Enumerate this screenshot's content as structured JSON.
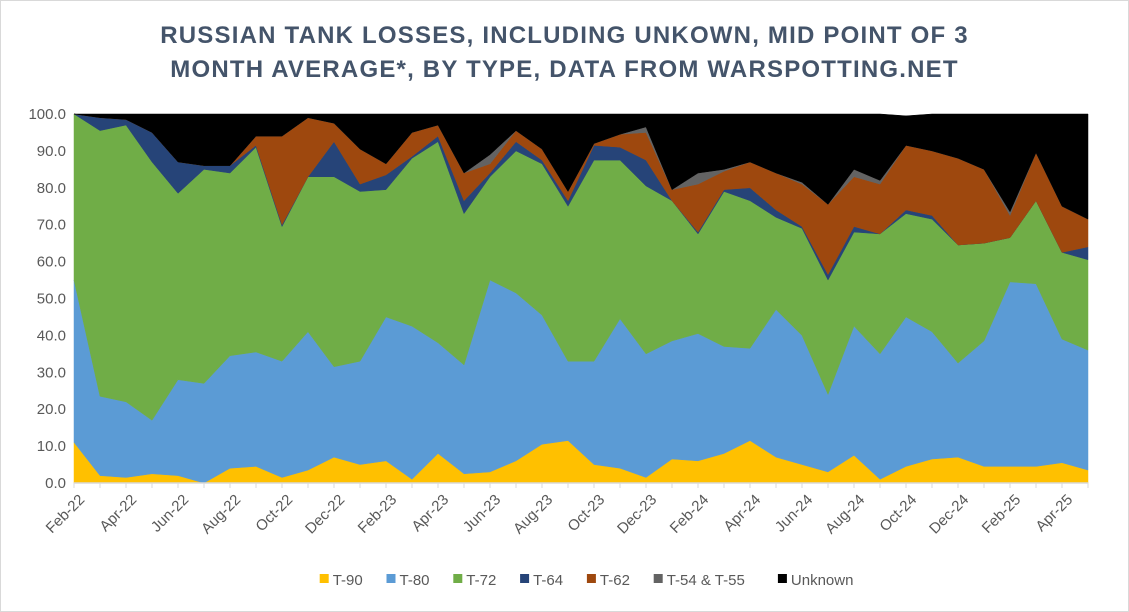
{
  "chart_data": {
    "type": "area",
    "stacked": true,
    "title_lines": [
      "RUSSIAN TANK LOSSES, INCLUDING UNKOWN, MID POINT OF 3",
      "MONTH AVERAGE*, BY TYPE, DATA FROM WARSPOTTING.NET"
    ],
    "xlabel": "",
    "ylabel": "",
    "ylim": [
      0,
      100
    ],
    "yticks": [
      "0.0",
      "10.0",
      "20.0",
      "30.0",
      "40.0",
      "50.0",
      "60.0",
      "70.0",
      "80.0",
      "90.0",
      "100.0"
    ],
    "x": [
      "Feb-22",
      "Mar-22",
      "Apr-22",
      "May-22",
      "Jun-22",
      "Jul-22",
      "Aug-22",
      "Sep-22",
      "Oct-22",
      "Nov-22",
      "Dec-22",
      "Jan-23",
      "Feb-23",
      "Mar-23",
      "Apr-23",
      "May-23",
      "Jun-23",
      "Jul-23",
      "Aug-23",
      "Sep-23",
      "Oct-23",
      "Nov-23",
      "Dec-23",
      "Jan-24",
      "Feb-24",
      "Mar-24",
      "Apr-24",
      "May-24",
      "Jun-24",
      "Jul-24",
      "Aug-24",
      "Sep-24",
      "Oct-24",
      "Nov-24",
      "Dec-24",
      "Jan-25",
      "Feb-25",
      "Mar-25",
      "Apr-25",
      "May-25"
    ],
    "xtick_labels": [
      "Feb-22",
      "Apr-22",
      "Jun-22",
      "Aug-22",
      "Oct-22",
      "Dec-22",
      "Feb-23",
      "Apr-23",
      "Jun-23",
      "Aug-23",
      "Oct-23",
      "Dec-23",
      "Feb-24",
      "Apr-24",
      "Jun-24",
      "Aug-24",
      "Oct-24",
      "Dec-24",
      "Feb-25",
      "Apr-25"
    ],
    "legend_position": "bottom",
    "grid": false,
    "series": [
      {
        "name": "T-90",
        "color": "#ffc000",
        "values": [
          11,
          2,
          1.5,
          2.5,
          2,
          0,
          4,
          4.5,
          1.5,
          3.5,
          7,
          5,
          6,
          1,
          8,
          2.5,
          3,
          6,
          10.5,
          11.5,
          5,
          4,
          1.5,
          6.5,
          6,
          8,
          11.5,
          7,
          5,
          3,
          7.5,
          1,
          4.5,
          6.5,
          7,
          4.5,
          4.5,
          4.5,
          5.5,
          3.5
        ]
      },
      {
        "name": "T-80",
        "color": "#5b9bd5",
        "values": [
          44,
          21.5,
          20.5,
          14.5,
          26,
          27,
          30.5,
          31,
          31.5,
          37.5,
          24.5,
          28,
          39,
          41.5,
          30,
          29.5,
          52,
          45.5,
          35,
          21.5,
          28,
          40.5,
          33.5,
          32,
          34.5,
          29,
          25,
          40,
          35,
          21,
          35,
          34,
          40.5,
          34.5,
          25.5,
          34,
          50,
          49.5,
          33.5,
          32.5
        ]
      },
      {
        "name": "T-72",
        "color": "#70ad47",
        "values": [
          45,
          72,
          75,
          70,
          50.5,
          58,
          49.5,
          55.5,
          36.5,
          42,
          51.5,
          46,
          34.5,
          45.5,
          54.5,
          41,
          28,
          38.5,
          41,
          42,
          54.5,
          43,
          45.5,
          38,
          27,
          42,
          40,
          25,
          29,
          31,
          25.5,
          32.5,
          28,
          30.5,
          32,
          26.5,
          12,
          22.5,
          23.5,
          24.5
        ]
      },
      {
        "name": "T-64",
        "color": "#264478",
        "values": [
          0,
          3.5,
          1.5,
          8,
          8.5,
          1,
          2,
          0.5,
          0.5,
          0,
          9.5,
          2,
          4,
          0.5,
          1.5,
          3.5,
          1,
          2.5,
          1,
          1.5,
          4,
          3.5,
          7,
          0,
          0.5,
          0.5,
          3.5,
          2,
          0.5,
          1.5,
          1.5,
          0,
          1,
          1,
          0,
          0,
          0,
          0,
          0,
          3.5
        ]
      },
      {
        "name": "T-62",
        "color": "#9e480e",
        "values": [
          0,
          0,
          0,
          0,
          0,
          0,
          0,
          2.5,
          24,
          16,
          5,
          9.5,
          3,
          6.5,
          3,
          7.5,
          2.5,
          3,
          3,
          2.5,
          0.5,
          3.5,
          7.5,
          3,
          13,
          5,
          7,
          10,
          11.5,
          19,
          13.5,
          13.5,
          17.5,
          17.5,
          23.5,
          20,
          6,
          13,
          12.5,
          7.5
        ]
      },
      {
        "name": "T-54 & T-55",
        "color": "#636363",
        "values": [
          0,
          0,
          0,
          0,
          0,
          0,
          0,
          0,
          0,
          0,
          0,
          0,
          0,
          0,
          0,
          0,
          2.5,
          0,
          0,
          0,
          0,
          0,
          1.5,
          0,
          3,
          0.5,
          0,
          0,
          0.5,
          0,
          2,
          1,
          0,
          0,
          0,
          0,
          1,
          0,
          0,
          0
        ]
      },
      {
        "name": "Unknown",
        "color": "#000000",
        "values": [
          0,
          1,
          1.5,
          5,
          13,
          14,
          14,
          6,
          6,
          1,
          2.5,
          9.5,
          13.5,
          5,
          3,
          16,
          11,
          4.5,
          9.5,
          21,
          8,
          5.5,
          3.5,
          20.5,
          16,
          15,
          13,
          16,
          18.5,
          24.5,
          15,
          18,
          8,
          10,
          12,
          15,
          26.5,
          10.5,
          25,
          28.5
        ]
      }
    ]
  }
}
